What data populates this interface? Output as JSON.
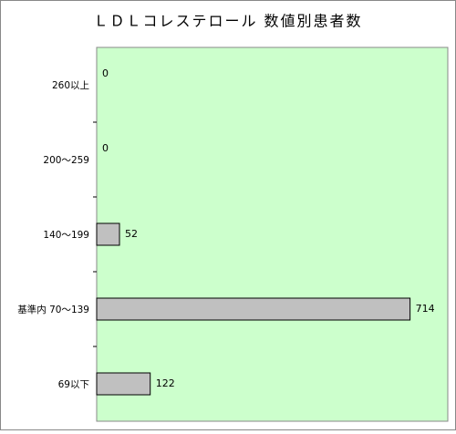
{
  "chart_data": {
    "type": "bar",
    "orientation": "horizontal",
    "title": "ＬＤＬコレステロール 数値別患者数",
    "categories": [
      "260以上",
      "200～259",
      "140～199",
      "基準内 70～139",
      "69以下"
    ],
    "values": [
      0,
      0,
      52,
      714,
      122
    ],
    "color": "#c0c0c0",
    "background": "#ccffcc",
    "xlim": [
      0,
      800
    ]
  }
}
